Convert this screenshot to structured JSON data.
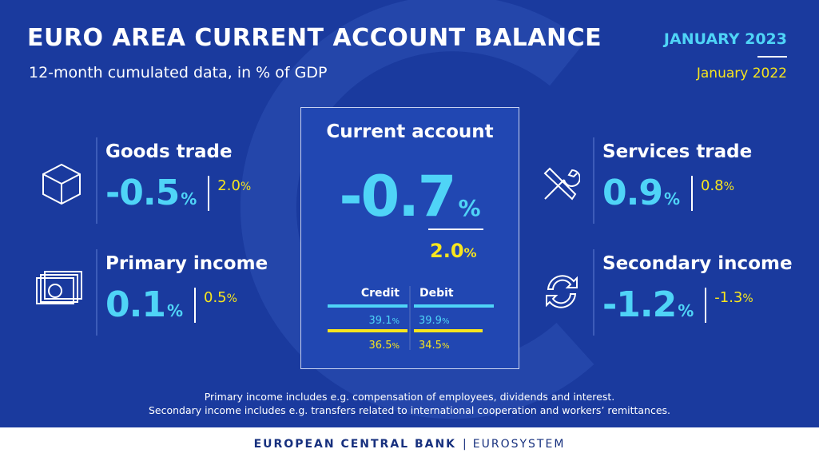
{
  "header": {
    "title": "EURO AREA CURRENT ACCOUNT BALANCE",
    "subtitle": "12-month cumulated data, in % of GDP",
    "legend": {
      "current": "JANUARY 2023",
      "previous": "January 2022"
    }
  },
  "items": [
    {
      "label": "Goods trade",
      "current": {
        "value": "-0.5",
        "unit": "%"
      },
      "previous": {
        "value": "2.0",
        "unit": "%"
      }
    },
    {
      "label": "Primary income",
      "current": {
        "value": "0.1",
        "unit": "%"
      },
      "previous": {
        "value": "0.5",
        "unit": "%"
      }
    },
    {
      "label": "Services trade",
      "current": {
        "value": "0.9",
        "unit": "%"
      },
      "previous": {
        "value": "0.8",
        "unit": "%"
      }
    },
    {
      "label": "Secondary income",
      "current": {
        "value": "-1.2",
        "unit": "%"
      },
      "previous": {
        "value": "-1.3",
        "unit": "%"
      }
    }
  ],
  "center": {
    "title": "Current account",
    "current": {
      "value": "-0.7",
      "unit": "%"
    },
    "previous": {
      "value": "2.0",
      "unit": "%"
    },
    "table": {
      "headers": [
        "Credit",
        "Debit"
      ],
      "current": [
        {
          "value": "39.1",
          "unit": "%"
        },
        {
          "value": "39.9",
          "unit": "%"
        }
      ],
      "previous": [
        {
          "value": "36.5",
          "unit": "%"
        },
        {
          "value": "34.5",
          "unit": "%"
        }
      ]
    }
  },
  "notes": [
    "Primary income includes e.g. compensation of employees, dividends and interest.",
    "Secondary income includes e.g. transfers related to international cooperation and workers’ remittances."
  ],
  "footer": {
    "left": "EUROPEAN CENTRAL BANK",
    "right": "EUROSYSTEM"
  }
}
